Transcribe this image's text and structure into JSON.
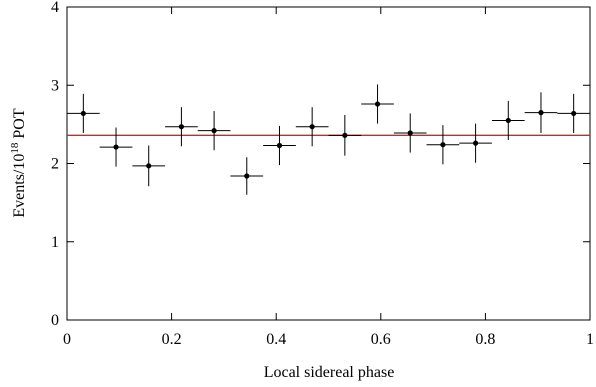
{
  "chart_data": {
    "type": "errorbar",
    "xlabel": "Local sidereal phase",
    "ylabel": [
      "Events/10",
      "18",
      " POT"
    ],
    "xlim": [
      0,
      1
    ],
    "ylim": [
      0,
      4
    ],
    "xticks": [
      0,
      0.2,
      0.4,
      0.6,
      0.8,
      1
    ],
    "yticks": [
      0,
      1,
      2,
      3,
      4
    ],
    "reference_line": {
      "value": 2.36,
      "color": "#e0201b"
    },
    "series": [
      {
        "color": "#000000",
        "x": [
          0.03125,
          0.09375,
          0.15625,
          0.21875,
          0.28125,
          0.34375,
          0.40625,
          0.46875,
          0.53125,
          0.59375,
          0.65625,
          0.71875,
          0.78125,
          0.84375,
          0.90625,
          0.96875
        ],
        "xerr": 0.03125,
        "values": [
          2.64,
          2.21,
          1.97,
          2.47,
          2.42,
          1.84,
          2.23,
          2.47,
          2.36,
          2.76,
          2.39,
          2.24,
          2.26,
          2.55,
          2.65,
          2.64
        ],
        "errors": [
          0.25,
          0.25,
          0.26,
          0.25,
          0.25,
          0.24,
          0.25,
          0.25,
          0.26,
          0.25,
          0.25,
          0.25,
          0.25,
          0.25,
          0.26,
          0.25
        ]
      }
    ]
  }
}
